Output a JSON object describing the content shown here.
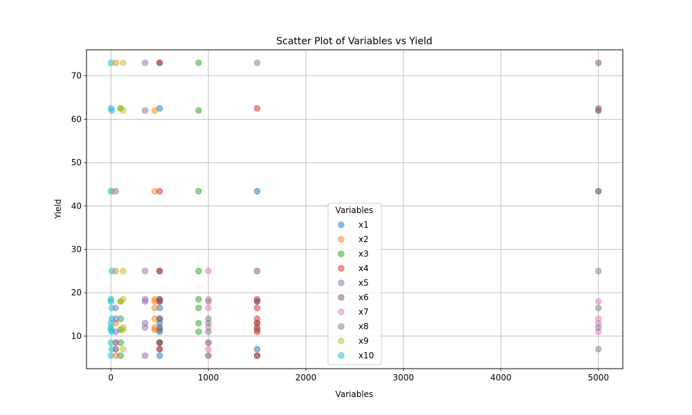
{
  "chart_data": {
    "type": "scatter",
    "title": "Scatter Plot of Variables vs Yield",
    "xlabel": "Variables",
    "ylabel": "Yield",
    "xlim": [
      -250,
      5250
    ],
    "ylim": [
      2.5,
      76
    ],
    "xticks": [
      0,
      1000,
      2000,
      3000,
      4000,
      5000
    ],
    "xtick_labels": [
      "0",
      "1000",
      "2000",
      "3000",
      "4000",
      "5000"
    ],
    "yticks": [
      10,
      20,
      30,
      40,
      50,
      60,
      70
    ],
    "ytick_labels": [
      "10",
      "20",
      "30",
      "40",
      "50",
      "60",
      "70"
    ],
    "grid": true,
    "legend": {
      "title": "Variables",
      "placement": "lower center"
    },
    "series": [
      {
        "name": "x1",
        "color": "#1f77b4",
        "points": [
          [
            500,
            73
          ],
          [
            500,
            62.5
          ],
          [
            1500,
            43.4
          ],
          [
            500,
            25
          ],
          [
            500,
            18.5
          ],
          [
            500,
            18
          ],
          [
            500,
            16.5
          ],
          [
            500,
            14
          ],
          [
            500,
            13
          ],
          [
            500,
            12
          ],
          [
            500,
            11
          ],
          [
            500,
            8.5
          ],
          [
            1500,
            7
          ],
          [
            500,
            5.5
          ],
          [
            1500,
            18
          ]
        ]
      },
      {
        "name": "x2",
        "color": "#ff7f0e",
        "points": [
          [
            50,
            73
          ],
          [
            450,
            62
          ],
          [
            450,
            43.4
          ],
          [
            50,
            25
          ],
          [
            450,
            18.5
          ],
          [
            450,
            18
          ],
          [
            450,
            16.5
          ],
          [
            450,
            14
          ],
          [
            50,
            13
          ],
          [
            450,
            12
          ],
          [
            450,
            11.5
          ],
          [
            50,
            8.5
          ],
          [
            50,
            7
          ],
          [
            50,
            5.5
          ]
        ]
      },
      {
        "name": "x3",
        "color": "#2ca02c",
        "points": [
          [
            900,
            73
          ],
          [
            900,
            62
          ],
          [
            900,
            43.4
          ],
          [
            900,
            25
          ],
          [
            900,
            18.5
          ],
          [
            900,
            16.5
          ],
          [
            900,
            13
          ],
          [
            900,
            11
          ],
          [
            100,
            62.5
          ],
          [
            100,
            18
          ],
          [
            100,
            14
          ],
          [
            100,
            8.5
          ],
          [
            100,
            5.5
          ],
          [
            100,
            11.5
          ]
        ]
      },
      {
        "name": "x4",
        "color": "#d62728",
        "points": [
          [
            500,
            73
          ],
          [
            1500,
            62.5
          ],
          [
            500,
            43.4
          ],
          [
            500,
            25
          ],
          [
            1500,
            18.5
          ],
          [
            500,
            18
          ],
          [
            1500,
            16.5
          ],
          [
            1500,
            14
          ],
          [
            1500,
            13
          ],
          [
            1500,
            12
          ],
          [
            1500,
            11
          ],
          [
            500,
            8.5
          ],
          [
            500,
            7
          ],
          [
            1500,
            5.5
          ]
        ]
      },
      {
        "name": "x5",
        "color": "#9467bd",
        "points": [
          [
            350,
            73
          ],
          [
            350,
            62
          ],
          [
            50,
            43.4
          ],
          [
            350,
            25
          ],
          [
            350,
            18.5
          ],
          [
            350,
            18
          ],
          [
            50,
            16.5
          ],
          [
            50,
            14
          ],
          [
            350,
            13
          ],
          [
            350,
            12
          ],
          [
            50,
            11
          ],
          [
            50,
            8.5
          ],
          [
            350,
            5.5
          ],
          [
            50,
            7
          ]
        ]
      },
      {
        "name": "x6",
        "color": "#8c564b",
        "points": [
          [
            5000,
            73
          ],
          [
            5000,
            62.5
          ],
          [
            5000,
            62
          ],
          [
            5000,
            43.4
          ],
          [
            1500,
            25
          ],
          [
            1500,
            18
          ],
          [
            500,
            18.5
          ],
          [
            500,
            14
          ],
          [
            1500,
            13
          ],
          [
            1500,
            11.5
          ],
          [
            500,
            11.5
          ],
          [
            1500,
            5.5
          ],
          [
            500,
            8.5
          ],
          [
            500,
            7
          ]
        ]
      },
      {
        "name": "x7",
        "color": "#e377c2",
        "points": [
          [
            1000,
            25
          ],
          [
            5000,
            18
          ],
          [
            1000,
            16.5
          ],
          [
            5000,
            14
          ],
          [
            5000,
            13
          ],
          [
            1000,
            12
          ],
          [
            5000,
            11
          ],
          [
            1000,
            7
          ],
          [
            1000,
            5.5
          ],
          [
            1000,
            18.5
          ],
          [
            1000,
            8.5
          ]
        ]
      },
      {
        "name": "x8",
        "color": "#7f7f7f",
        "points": [
          [
            1500,
            73
          ],
          [
            5000,
            62
          ],
          [
            5000,
            43.4
          ],
          [
            5000,
            25
          ],
          [
            1000,
            18
          ],
          [
            5000,
            16.5
          ],
          [
            1000,
            14
          ],
          [
            1000,
            13
          ],
          [
            5000,
            12
          ],
          [
            1000,
            11
          ],
          [
            1000,
            8.5
          ],
          [
            5000,
            7
          ],
          [
            1000,
            5.5
          ]
        ]
      },
      {
        "name": "x9",
        "color": "#bcbd22",
        "points": [
          [
            125,
            73
          ],
          [
            125,
            62
          ],
          [
            125,
            25
          ],
          [
            125,
            18.5
          ],
          [
            100,
            18
          ],
          [
            125,
            12
          ],
          [
            125,
            11.5
          ],
          [
            125,
            7
          ],
          [
            20,
            43.4
          ],
          [
            100,
            62.5
          ]
        ]
      },
      {
        "name": "x10",
        "color": "#17becf",
        "points": [
          [
            0,
            73
          ],
          [
            0,
            62.5
          ],
          [
            10,
            62
          ],
          [
            0,
            43.4
          ],
          [
            10,
            25
          ],
          [
            0,
            18.5
          ],
          [
            0,
            18
          ],
          [
            10,
            16.5
          ],
          [
            10,
            14
          ],
          [
            0,
            13
          ],
          [
            0,
            12
          ],
          [
            0,
            11.5
          ],
          [
            10,
            11
          ],
          [
            0,
            8.5
          ],
          [
            10,
            7
          ],
          [
            0,
            5.5
          ]
        ]
      }
    ]
  }
}
